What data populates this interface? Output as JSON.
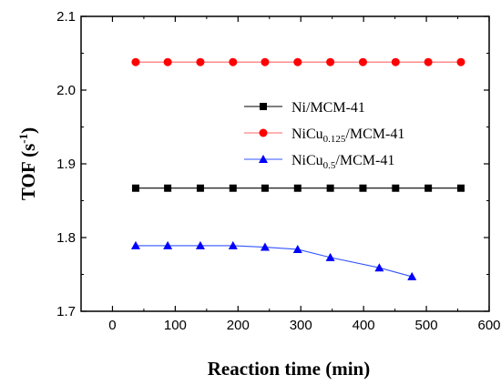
{
  "chart_data": {
    "type": "line",
    "xlabel": "Reaction time (min)",
    "ylabel": {
      "main": "TOF (s",
      "sup": "-1",
      "end": ")"
    },
    "xlim": [
      -50,
      600
    ],
    "ylim": [
      1.7,
      2.1
    ],
    "xticks": [
      0,
      100,
      200,
      300,
      400,
      500,
      600
    ],
    "yticks": [
      1.7,
      1.8,
      1.9,
      2.0,
      2.1
    ],
    "legend_position": "right",
    "series": [
      {
        "name": "Ni/MCM-41",
        "label_parts": {
          "base": "Ni/MCM-41",
          "sub": "",
          "tail": ""
        },
        "marker": "square",
        "color": "#000000",
        "line_color": "#000000",
        "x": [
          37,
          88,
          140,
          192,
          243,
          295,
          347,
          399,
          451,
          503,
          555
        ],
        "values": [
          1.867,
          1.867,
          1.867,
          1.867,
          1.867,
          1.867,
          1.867,
          1.867,
          1.867,
          1.867,
          1.867
        ]
      },
      {
        "name": "NiCu0.125/MCM-41",
        "label_parts": {
          "base": "NiCu",
          "sub": "0.125",
          "tail": "/MCM-41"
        },
        "marker": "circle",
        "color": "#ff0000",
        "line_color": "#ff6666",
        "x": [
          37,
          88,
          140,
          192,
          243,
          295,
          347,
          399,
          451,
          503,
          555
        ],
        "values": [
          2.038,
          2.038,
          2.038,
          2.038,
          2.038,
          2.038,
          2.038,
          2.038,
          2.038,
          2.038,
          2.038
        ]
      },
      {
        "name": "NiCu0.5/MCM-41",
        "label_parts": {
          "base": "NiCu",
          "sub": "0.5",
          "tail": "/MCM-41"
        },
        "marker": "triangle",
        "color": "#0000ff",
        "line_color": "#3355ff",
        "x": [
          37,
          88,
          140,
          192,
          243,
          295,
          347,
          425,
          477
        ],
        "values": [
          1.789,
          1.789,
          1.789,
          1.789,
          1.787,
          1.784,
          1.773,
          1.759,
          1.747
        ]
      }
    ]
  }
}
